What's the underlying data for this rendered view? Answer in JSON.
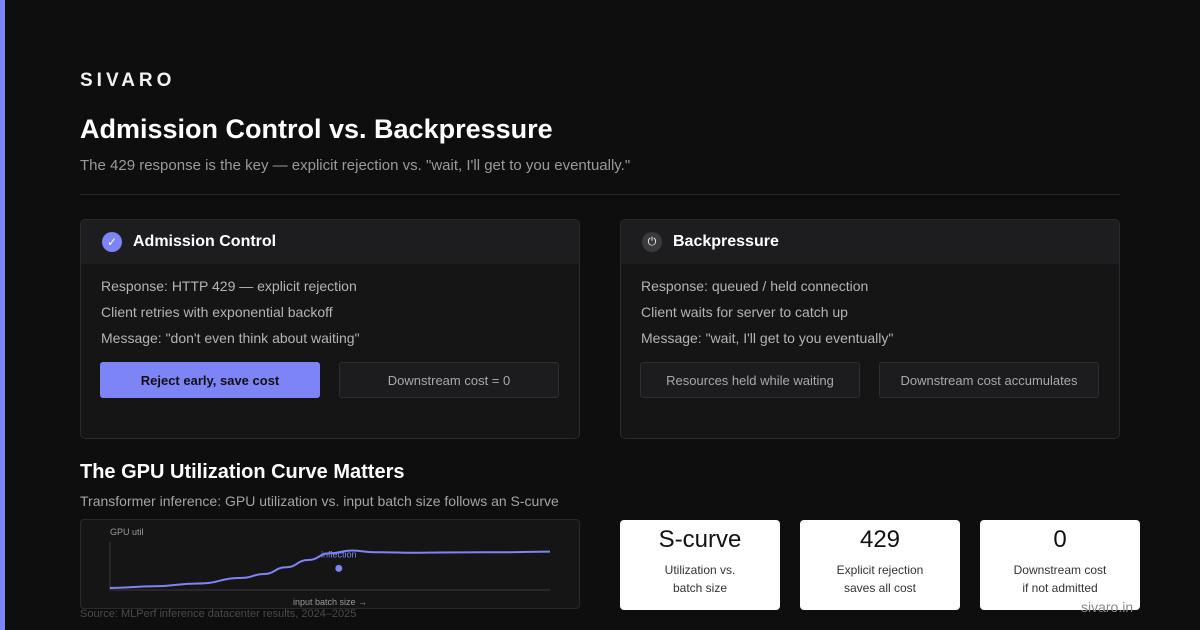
{
  "brand": "SIVARO",
  "title": "Admission Control vs. Backpressure",
  "subtitle": "The 429 response is the key — explicit rejection vs. \"wait, I'll get to you eventually.\"",
  "colors": {
    "accent": "#7d84f5",
    "background": "#0e0e0f",
    "card": "#151516"
  },
  "cards": [
    {
      "icon": "check-icon",
      "title": "Admission Control",
      "lines": [
        "Response: HTTP 429 — explicit rejection",
        "Client retries with exponential backoff",
        "Message: \"don't even think about waiting\""
      ],
      "buttons": [
        "Reject early, save cost",
        "Downstream cost = 0"
      ]
    },
    {
      "icon": "power-icon",
      "title": "Backpressure",
      "lines": [
        "Response: queued / held connection",
        "Client waits for server to catch up",
        "Message: \"wait, I'll get to you eventually\""
      ],
      "buttons": [
        "Resources held while waiting",
        "Downstream cost accumulates"
      ]
    }
  ],
  "section": {
    "title": "The GPU Utilization Curve Matters",
    "subtitle": "Transformer inference: GPU utilization vs. input batch size follows an S-curve"
  },
  "chart_data": {
    "type": "line",
    "ylabel": "GPU util",
    "xlabel": "input batch size →",
    "annotation": "inflection",
    "xlim": [
      0,
      1
    ],
    "ylim": [
      0,
      1
    ],
    "grid": false,
    "x": [
      0,
      0.1,
      0.2,
      0.3,
      0.35,
      0.4,
      0.45,
      0.5,
      0.55,
      0.6,
      0.7,
      0.8,
      0.9,
      1.0
    ],
    "y": [
      0.0,
      0.03,
      0.08,
      0.18,
      0.25,
      0.37,
      0.5,
      0.62,
      0.67,
      0.64,
      0.63,
      0.635,
      0.64,
      0.65
    ],
    "marker": {
      "x": 0.52,
      "y": 0.35
    }
  },
  "stats": [
    {
      "value": "S-curve",
      "label1": "Utilization vs.",
      "label2": "batch size"
    },
    {
      "value": "429",
      "label1": "Explicit rejection",
      "label2": "saves all cost"
    },
    {
      "value": "0",
      "label1": "Downstream cost",
      "label2": "if not admitted"
    }
  ],
  "source": "Source: MLPerf inference datacenter results, 2024–2025",
  "domain": "sivaro.in"
}
